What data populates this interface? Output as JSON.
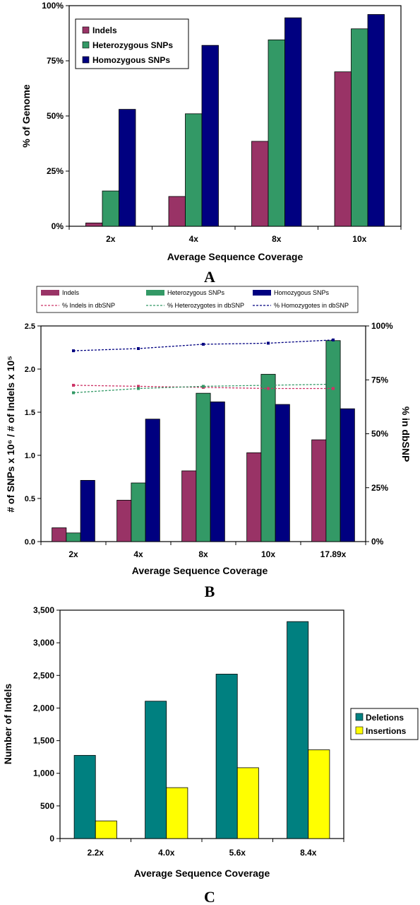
{
  "panels": [
    {
      "letter": "A",
      "chart_data": {
        "type": "bar",
        "categories": [
          "2x",
          "4x",
          "8x",
          "10x"
        ],
        "series": [
          {
            "name": "Indels",
            "color": "#993366",
            "values": [
              1.5,
              13.5,
              38.5,
              70
            ]
          },
          {
            "name": "Heterozygous SNPs",
            "color": "#339966",
            "values": [
              16,
              51,
              84.5,
              89.5
            ]
          },
          {
            "name": "Homozygous SNPs",
            "color": "#000080",
            "values": [
              53,
              82,
              94.5,
              96
            ]
          }
        ],
        "xlabel": "Average Sequence Coverage",
        "ylabel": "% of Genome",
        "ylim": [
          0,
          100
        ],
        "yticks": [
          "0%",
          "25%",
          "50%",
          "75%",
          "100%"
        ],
        "legend_position": "top-left",
        "grid": false
      }
    },
    {
      "letter": "B",
      "chart_data": {
        "type": "bar",
        "categories": [
          "2x",
          "4x",
          "8x",
          "10x",
          "17.89x"
        ],
        "series": [
          {
            "name": "Indels",
            "color": "#993366",
            "values": [
              0.16,
              0.48,
              0.82,
              1.03,
              1.18
            ]
          },
          {
            "name": "Heterozygous SNPs",
            "color": "#339966",
            "values": [
              0.1,
              0.68,
              1.72,
              1.94,
              2.33
            ]
          },
          {
            "name": "Homozygous SNPs",
            "color": "#000080",
            "values": [
              0.71,
              1.42,
              1.62,
              1.59,
              1.54
            ]
          }
        ],
        "line_series": [
          {
            "name": "% Indels in dbSNP",
            "color": "#cc3366",
            "values": [
              72.5,
              72,
              71.5,
              71,
              71
            ]
          },
          {
            "name": "% Heterozygotes in dbSNP",
            "color": "#339966",
            "values": [
              69,
              71,
              72,
              72.5,
              73
            ]
          },
          {
            "name": "% Homozygotes in dbSNP",
            "color": "#000080",
            "values": [
              88.5,
              89.5,
              91.5,
              92,
              93.5
            ]
          }
        ],
        "xlabel": "Average Sequence Coverage",
        "ylabel": "# of SNPs x 10⁶ / # of Indels x 10⁵",
        "y2label": "% in dbSNP",
        "ylim": [
          0,
          2.5
        ],
        "y2lim": [
          0,
          100
        ],
        "yticks": [
          "0.0",
          "0.5",
          "1.0",
          "1.5",
          "2.0",
          "2.5"
        ],
        "y2ticks": [
          "0%",
          "25%",
          "50%",
          "75%",
          "100%"
        ],
        "legend_position": "top",
        "grid": false
      }
    },
    {
      "letter": "C",
      "chart_data": {
        "type": "bar",
        "categories": [
          "2.2x",
          "4.0x",
          "5.6x",
          "8.4x"
        ],
        "series": [
          {
            "name": "Deletions",
            "color": "#008080",
            "values": [
              1275,
              2105,
              2520,
              3325
            ]
          },
          {
            "name": "Insertions",
            "color": "#ffff00",
            "values": [
              270,
              780,
              1085,
              1360
            ]
          }
        ],
        "xlabel": "Average Sequence Coverage",
        "ylabel": "Number of Indels",
        "ylim": [
          0,
          3500
        ],
        "yticks": [
          "0",
          "500",
          "1,000",
          "1,500",
          "2,000",
          "2,500",
          "3,000",
          "3,500"
        ],
        "legend_position": "right",
        "grid": false
      }
    }
  ]
}
